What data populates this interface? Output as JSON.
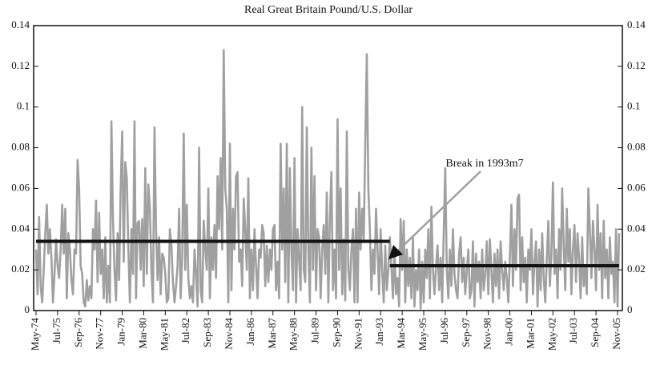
{
  "chart_data": {
    "type": "line",
    "title": "Real Great Britain Pound/U.S. Dollar",
    "annotation": "Break in 1993m7",
    "color": "#a0a0a0",
    "level_color": "#111111",
    "ylim": [
      0,
      0.14
    ],
    "yticks": [
      0,
      0.02,
      0.04,
      0.06,
      0.08,
      0.1,
      0.12,
      0.14
    ],
    "categories": [
      "May-74",
      null,
      null,
      null,
      null,
      null,
      null,
      null,
      null,
      null,
      null,
      null,
      null,
      null,
      "Jul-75",
      null,
      null,
      null,
      null,
      null,
      null,
      null,
      null,
      null,
      null,
      null,
      null,
      null,
      "Sep-76",
      null,
      null,
      null,
      null,
      null,
      null,
      null,
      null,
      null,
      null,
      null,
      null,
      null,
      "Nov-77",
      null,
      null,
      null,
      null,
      null,
      null,
      null,
      null,
      null,
      null,
      null,
      null,
      null,
      "Jan-79",
      null,
      null,
      null,
      null,
      null,
      null,
      null,
      null,
      null,
      null,
      null,
      null,
      null,
      "Mar-80",
      null,
      null,
      null,
      null,
      null,
      null,
      null,
      null,
      null,
      null,
      null,
      null,
      null,
      "May-81",
      null,
      null,
      null,
      null,
      null,
      null,
      null,
      null,
      null,
      null,
      null,
      null,
      null,
      "Jul-82",
      null,
      null,
      null,
      null,
      null,
      null,
      null,
      null,
      null,
      null,
      null,
      null,
      null,
      "Sep-83",
      null,
      null,
      null,
      null,
      null,
      null,
      null,
      null,
      null,
      null,
      null,
      null,
      null,
      "Nov-84",
      null,
      null,
      null,
      null,
      null,
      null,
      null,
      null,
      null,
      null,
      null,
      null,
      null,
      "Jan-86",
      null,
      null,
      null,
      null,
      null,
      null,
      null,
      null,
      null,
      null,
      null,
      null,
      null,
      "Mar-87",
      null,
      null,
      null,
      null,
      null,
      null,
      null,
      null,
      null,
      null,
      null,
      null,
      null,
      "May-88",
      null,
      null,
      null,
      null,
      null,
      null,
      null,
      null,
      null,
      null,
      null,
      null,
      null,
      "Jul-89",
      null,
      null,
      null,
      null,
      null,
      null,
      null,
      null,
      null,
      null,
      null,
      null,
      null,
      "Sep-90",
      null,
      null,
      null,
      null,
      null,
      null,
      null,
      null,
      null,
      null,
      null,
      null,
      null,
      "Nov-91",
      null,
      null,
      null,
      null,
      null,
      null,
      null,
      null,
      null,
      null,
      null,
      null,
      null,
      "Jan-93",
      null,
      null,
      null,
      null,
      null,
      null,
      null,
      null,
      null,
      null,
      null,
      null,
      null,
      "Mar-94",
      null,
      null,
      null,
      null,
      null,
      null,
      null,
      null,
      null,
      null,
      null,
      null,
      null,
      "May-95",
      null,
      null,
      null,
      null,
      null,
      null,
      null,
      null,
      null,
      null,
      null,
      null,
      null,
      "Jul-96",
      null,
      null,
      null,
      null,
      null,
      null,
      null,
      null,
      null,
      null,
      null,
      null,
      null,
      "Sep-97",
      null,
      null,
      null,
      null,
      null,
      null,
      null,
      null,
      null,
      null,
      null,
      null,
      null,
      "Nov-98",
      null,
      null,
      null,
      null,
      null,
      null,
      null,
      null,
      null,
      null,
      null,
      null,
      null,
      "Jan-00",
      null,
      null,
      null,
      null,
      null,
      null,
      null,
      null,
      null,
      null,
      null,
      null,
      null,
      "Mar-01",
      null,
      null,
      null,
      null,
      null,
      null,
      null,
      null,
      null,
      null,
      null,
      null,
      null,
      "May-02",
      null,
      null,
      null,
      null,
      null,
      null,
      null,
      null,
      null,
      null,
      null,
      null,
      null,
      "Jul-03",
      null,
      null,
      null,
      null,
      null,
      null,
      null,
      null,
      null,
      null,
      null,
      null,
      null,
      "Sep-04",
      null,
      null,
      null,
      null,
      null,
      null,
      null,
      null,
      null,
      null,
      null,
      null,
      null,
      "Nov-05",
      null
    ],
    "values": [
      0.03,
      0.008,
      0.046,
      0.012,
      0.004,
      0.02,
      0.038,
      0.052,
      0.028,
      0.04,
      0.026,
      0.004,
      0.018,
      0.035,
      0.022,
      0.016,
      0.03,
      0.052,
      0.028,
      0.05,
      0.006,
      0.038,
      0.03,
      0.015,
      0.008,
      0.03,
      0.028,
      0.074,
      0.06,
      0.022,
      0.018,
      0.004,
      0.002,
      0.015,
      0.005,
      0.012,
      0.006,
      0.04,
      0.03,
      0.054,
      0.014,
      0.048,
      0.018,
      0.03,
      0.006,
      0.036,
      0.004,
      0.022,
      0.004,
      0.093,
      0.045,
      0.02,
      0.005,
      0.038,
      0.015,
      0.06,
      0.088,
      0.024,
      0.073,
      0.065,
      0.03,
      0.004,
      0.04,
      0.018,
      0.093,
      0.006,
      0.043,
      0.044,
      0.02,
      0.045,
      0.012,
      0.07,
      0.018,
      0.062,
      0.05,
      0.02,
      0.004,
      0.09,
      0.04,
      0.015,
      0.036,
      0.008,
      0.028,
      0.026,
      0.018,
      0.004,
      0.006,
      0.04,
      0.032,
      0.014,
      0.004,
      0.012,
      0.022,
      0.05,
      0.006,
      0.026,
      0.087,
      0.02,
      0.052,
      0.016,
      0.006,
      0.012,
      0.004,
      0.03,
      0.018,
      0.002,
      0.08,
      0.01,
      0.004,
      0.044,
      0.03,
      0.02,
      0.06,
      0.006,
      0.036,
      0.02,
      0.042,
      0.016,
      0.066,
      0.04,
      0.075,
      0.03,
      0.128,
      0.06,
      0.05,
      0.004,
      0.082,
      0.01,
      0.05,
      0.03,
      0.066,
      0.068,
      0.024,
      0.03,
      0.012,
      0.055,
      0.04,
      0.02,
      0.065,
      0.006,
      0.03,
      0.01,
      0.04,
      0.022,
      0.006,
      0.03,
      0.026,
      0.042,
      0.038,
      0.012,
      0.032,
      0.014,
      0.03,
      0.02,
      0.04,
      0.042,
      0.01,
      0.024,
      0.006,
      0.082,
      0.03,
      0.06,
      0.014,
      0.082,
      0.004,
      0.07,
      0.03,
      0.01,
      0.075,
      0.004,
      0.04,
      0.025,
      0.01,
      0.1,
      0.02,
      0.014,
      0.09,
      0.03,
      0.004,
      0.08,
      0.02,
      0.066,
      0.01,
      0.04,
      0.036,
      0.006,
      0.03,
      0.042,
      0.018,
      0.058,
      0.004,
      0.045,
      0.068,
      0.01,
      0.03,
      0.006,
      0.094,
      0.02,
      0.06,
      0.008,
      0.035,
      0.005,
      0.088,
      0.02,
      0.01,
      0.03,
      0.04,
      0.004,
      0.05,
      0.004,
      0.058,
      0.03,
      0.05,
      0.034,
      0.082,
      0.126,
      0.06,
      0.04,
      0.01,
      0.03,
      0.018,
      0.05,
      0.03,
      0.008,
      0.04,
      0.02,
      0.004,
      0.032,
      0.01,
      0.02,
      0.036,
      0.022,
      0.006,
      0.03,
      0.008,
      0.016,
      0.002,
      0.045,
      0.02,
      0.044,
      0.004,
      0.03,
      0.012,
      0.026,
      0.006,
      0.036,
      0.002,
      0.02,
      0.01,
      0.03,
      0.001,
      0.024,
      0.004,
      0.03,
      0.016,
      0.04,
      0.006,
      0.051,
      0.02,
      0.008,
      0.022,
      0.032,
      0.01,
      0.026,
      0.004,
      0.038,
      0.07,
      0.02,
      0.006,
      0.03,
      0.012,
      0.04,
      0.018,
      0.01,
      0.006,
      0.028,
      0.036,
      0.014,
      0.026,
      0.008,
      0.02,
      0.03,
      0.006,
      0.01,
      0.034,
      0.002,
      0.028,
      0.014,
      0.024,
      0.006,
      0.03,
      0.01,
      0.018,
      0.034,
      0.008,
      0.035,
      0.02,
      0.004,
      0.028,
      0.012,
      0.03,
      0.006,
      0.034,
      0.02,
      0.01,
      0.024,
      0.016,
      0.004,
      0.026,
      0.052,
      0.012,
      0.04,
      0.02,
      0.055,
      0.057,
      0.01,
      0.036,
      0.014,
      0.026,
      0.004,
      0.03,
      0.02,
      0.04,
      0.008,
      0.024,
      0.034,
      0.002,
      0.03,
      0.01,
      0.038,
      0.016,
      0.004,
      0.025,
      0.044,
      0.012,
      0.028,
      0.063,
      0.018,
      0.03,
      0.006,
      0.04,
      0.02,
      0.06,
      0.032,
      0.01,
      0.05,
      0.024,
      0.04,
      0.008,
      0.03,
      0.042,
      0.014,
      0.038,
      0.026,
      0.006,
      0.036,
      0.012,
      0.022,
      0.008,
      0.06,
      0.04,
      0.016,
      0.044,
      0.03,
      0.01,
      0.052,
      0.02,
      0.038,
      0.006,
      0.044,
      0.016,
      0.03,
      0.006,
      0.036,
      0.018,
      0.024,
      0.004,
      0.04,
      0.002,
      0.038
    ],
    "level_shifts": [
      {
        "value": 0.034,
        "x": [
          0,
          230
        ]
      },
      {
        "value": 0.022,
        "x": [
          230,
          379
        ]
      }
    ]
  }
}
